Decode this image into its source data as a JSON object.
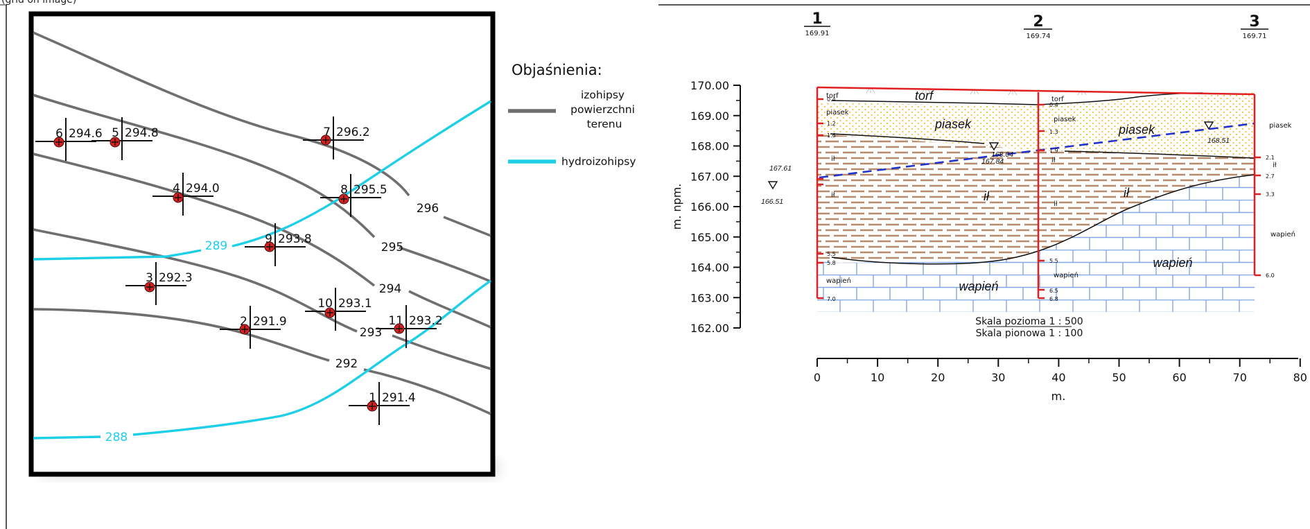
{
  "header_text": "(grid on image)",
  "map": {
    "legend": {
      "title": "Objaśnienia:",
      "items": [
        {
          "key": "contour",
          "lines": [
            "izohipsy",
            "powierzchni",
            "terenu"
          ],
          "color": "#6f6f6f"
        },
        {
          "key": "hydro",
          "lines": [
            "hydroizohipsy"
          ],
          "color": "#1ecfe8"
        }
      ]
    },
    "contour_labels": [
      "296",
      "295",
      "294",
      "293",
      "292"
    ],
    "hydro_labels": [
      "289",
      "288"
    ],
    "wells": [
      {
        "id": "6",
        "elev": "294.6"
      },
      {
        "id": "5",
        "elev": "294.8"
      },
      {
        "id": "7",
        "elev": "296.2"
      },
      {
        "id": "4",
        "elev": "294.0"
      },
      {
        "id": "8",
        "elev": "295.5"
      },
      {
        "id": "9",
        "elev": "293.8"
      },
      {
        "id": "3",
        "elev": "292.3"
      },
      {
        "id": "10",
        "elev": "293.1"
      },
      {
        "id": "2",
        "elev": "291.9"
      },
      {
        "id": "11",
        "elev": "293.2"
      },
      {
        "id": "1",
        "elev": "291.4"
      }
    ],
    "colors": {
      "contour": "#6f6f6f",
      "hydro": "#1ecfe8",
      "well": "#d62020"
    }
  },
  "section": {
    "boreholes": [
      {
        "id": "1",
        "elev": "169.91"
      },
      {
        "id": "2",
        "elev": "169.74"
      },
      {
        "id": "3",
        "elev": "169.71"
      }
    ],
    "y_axis": {
      "label": "m. npm.",
      "ticks": [
        "170.00",
        "169.00",
        "168.00",
        "167.00",
        "166.00",
        "165.00",
        "164.00",
        "163.00",
        "162.00"
      ]
    },
    "x_axis": {
      "label": "m.",
      "ticks": [
        "0",
        "10",
        "20",
        "30",
        "40",
        "50",
        "60",
        "70",
        "80"
      ]
    },
    "layers_big": [
      "torf",
      "piasek",
      "ił",
      "wapień"
    ],
    "layers_big_right": [
      "piasek",
      "ił",
      "wapień"
    ],
    "bh1": {
      "depths": [
        "0.4",
        "1.2",
        "1.6",
        "5.5",
        "5.8",
        "7.0"
      ],
      "names": [
        "torf",
        "piasek",
        "ił",
        "ił",
        "wapień"
      ]
    },
    "bh2": {
      "depths": [
        "0.4",
        "1.3",
        "1.9",
        "5.5",
        "6.5",
        "6.8"
      ],
      "names": [
        "torf",
        "piasek",
        "ił",
        "ił",
        "wapień"
      ]
    },
    "bh3": {
      "depths": [
        "2.1",
        "2.7",
        "3.3",
        "6.0"
      ],
      "names": [
        "piasek",
        "ił",
        "wapień"
      ]
    },
    "water": {
      "w1a": "167.61",
      "w1b": "166.51",
      "w2a": "168.04",
      "w2b": "167.84",
      "w3": "168.51"
    },
    "scale": [
      "Skala pozioma 1 : 500",
      "Skala pionowa 1 : 100"
    ],
    "colors": {
      "frame": "#e02020",
      "sand": "#f5c242",
      "clay": "#b58b6c",
      "lime": "#7fa8ea",
      "water": "#2233cc"
    }
  }
}
